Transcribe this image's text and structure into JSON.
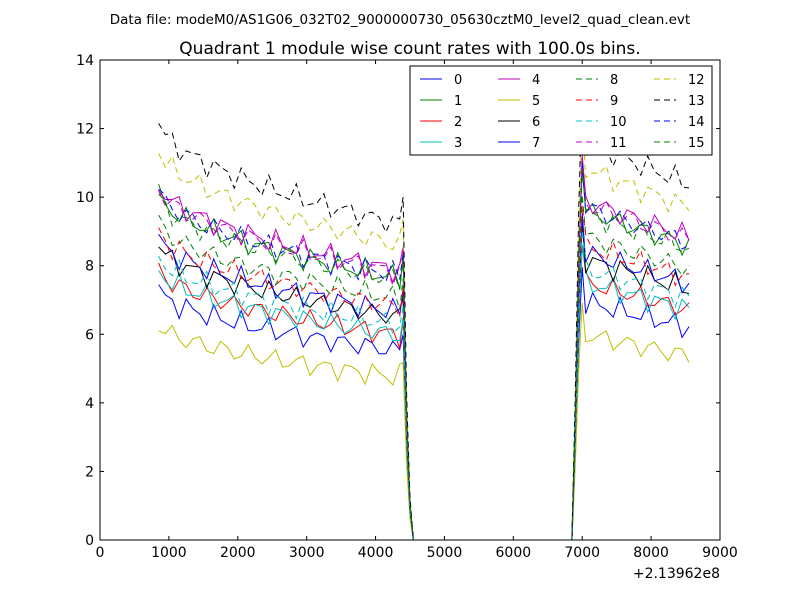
{
  "figure": {
    "suptitle": "Data file: modeM0/AS1G06_032T02_9000000730_05630cztM0_level2_quad_clean.evt"
  },
  "chart_data": {
    "type": "line",
    "title": "Quadrant 1 module wise count rates with 100.0s bins.",
    "xlabel": "",
    "ylabel": "",
    "x_offset_label": "+2.13962e8",
    "xlim": [
      0,
      9000
    ],
    "ylim": [
      0,
      14
    ],
    "xticks": [
      "0",
      "1000",
      "2000",
      "3000",
      "4000",
      "5000",
      "6000",
      "7000",
      "8000",
      "9000"
    ],
    "yticks": [
      "0",
      "2",
      "4",
      "6",
      "8",
      "10",
      "12",
      "14"
    ],
    "grid": false,
    "legend_placement": "top-right",
    "x": [
      850,
      950,
      1050,
      1150,
      1250,
      1350,
      1450,
      1550,
      1650,
      1750,
      1850,
      1950,
      2050,
      2150,
      2250,
      2350,
      2450,
      2550,
      2650,
      2750,
      2850,
      2950,
      3050,
      3150,
      3250,
      3350,
      3450,
      3550,
      3650,
      3750,
      3850,
      3950,
      4050,
      4150,
      4250,
      4350,
      4400,
      4450,
      4500,
      4550,
      4650,
      4750,
      4850,
      4950,
      5050,
      5150,
      5250,
      5350,
      5450,
      5550,
      5650,
      5750,
      5850,
      5950,
      6050,
      6150,
      6250,
      6350,
      6450,
      6550,
      6650,
      6750,
      6850,
      6900,
      6950,
      7000,
      7050,
      7150,
      7250,
      7350,
      7450,
      7550,
      7650,
      7750,
      7850,
      7950,
      8050,
      8150,
      8250,
      8350,
      8450,
      8550
    ],
    "series": [
      {
        "name": "0",
        "color": "#0000ff",
        "style": "solid",
        "base": 7.3
      },
      {
        "name": "1",
        "color": "#008000",
        "style": "solid",
        "base": 10.1
      },
      {
        "name": "2",
        "color": "#ff0000",
        "style": "solid",
        "base": 7.9
      },
      {
        "name": "3",
        "color": "#00bfbf",
        "style": "solid",
        "base": 7.9
      },
      {
        "name": "4",
        "color": "#bf00bf",
        "style": "solid",
        "base": 10.4
      },
      {
        "name": "5",
        "color": "#bfbf00",
        "style": "solid",
        "base": 6.3
      },
      {
        "name": "6",
        "color": "#000000",
        "style": "solid",
        "base": 8.6
      },
      {
        "name": "7",
        "color": "#0000ff",
        "style": "solid",
        "base": 8.8
      },
      {
        "name": "8",
        "color": "#008000",
        "style": "dashed",
        "base": 9.3
      },
      {
        "name": "9",
        "color": "#ff0000",
        "style": "dashed",
        "base": 9.0
      },
      {
        "name": "10",
        "color": "#00bfbf",
        "style": "dashed",
        "base": 8.3
      },
      {
        "name": "11",
        "color": "#bf00bf",
        "style": "dashed",
        "base": 10.3
      },
      {
        "name": "12",
        "color": "#bfbf00",
        "style": "dashed",
        "base": 11.4
      },
      {
        "name": "13",
        "color": "#000000",
        "style": "dashed",
        "base": 12.2
      },
      {
        "name": "14",
        "color": "#0000ff",
        "style": "dashed",
        "base": 10.2
      },
      {
        "name": "15",
        "color": "#008000",
        "style": "dashed",
        "base": 10.0
      }
    ]
  }
}
